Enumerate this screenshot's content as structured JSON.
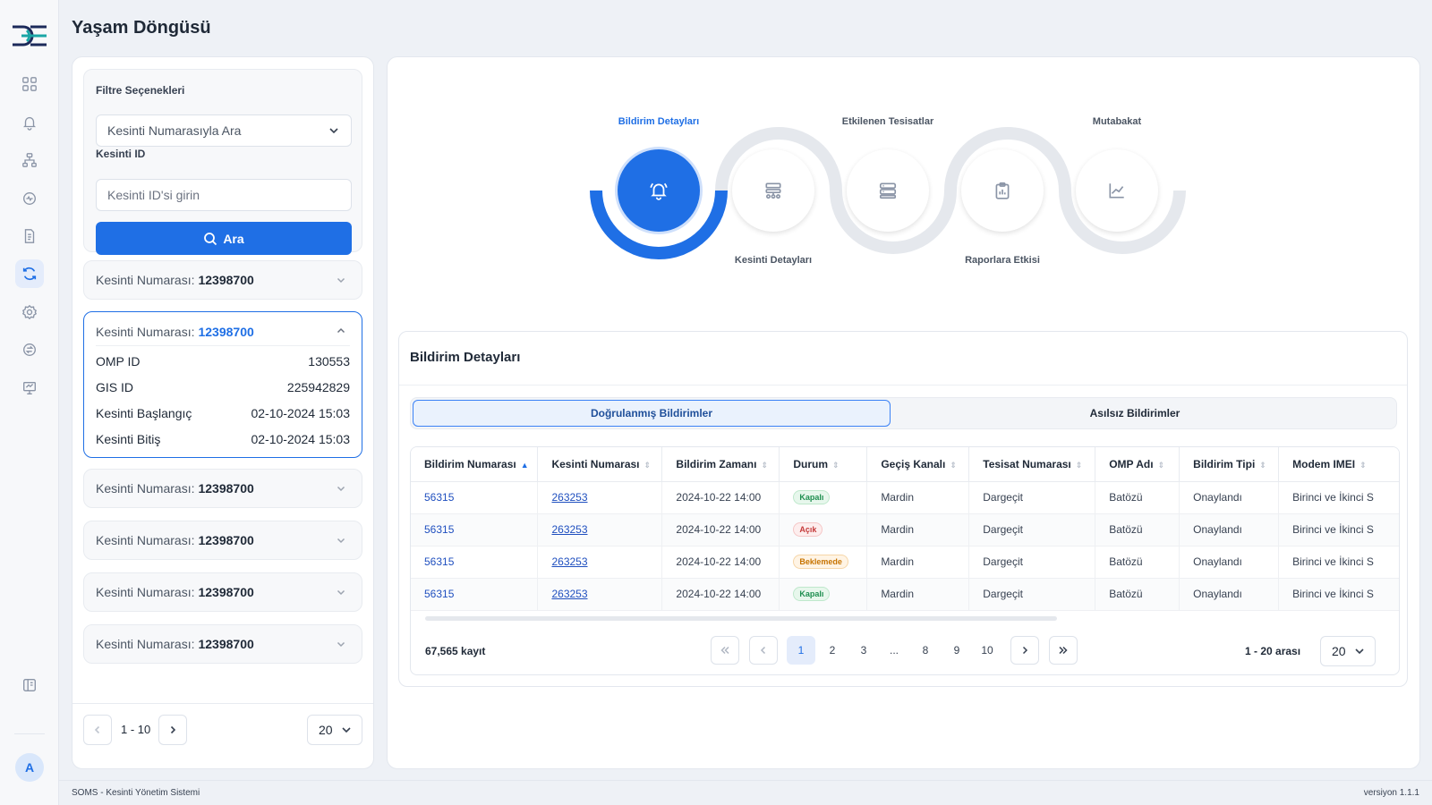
{
  "page": {
    "title": "Yaşam Döngüsü"
  },
  "sidebar": {
    "icons": [
      "dashboard-icon",
      "bell-icon",
      "hierarchy-icon",
      "monitor-icon",
      "document-icon",
      "lifecycle-icon",
      "settings-icon",
      "exchange-icon",
      "presentation-icon"
    ],
    "active": "lifecycle-icon",
    "avatar_initial": "A"
  },
  "filters": {
    "title": "Filtre Seçenekleri",
    "select_value": "Kesinti Numarasıyla Ara",
    "id_label": "Kesinti ID",
    "id_placeholder": "Kesinti ID'si girin",
    "search_label": "Ara"
  },
  "outages": {
    "label": "Kesinti Numarası:",
    "items": [
      {
        "number": "12398700"
      },
      {
        "number": "12398700",
        "expanded": true,
        "details": [
          {
            "key": "OMP ID",
            "value": "130553"
          },
          {
            "key": "GIS ID",
            "value": "225942829"
          },
          {
            "key": "Kesinti Başlangıç",
            "value": "02-10-2024 15:03"
          },
          {
            "key": "Kesinti Bitiş",
            "value": "02-10-2024 15:03"
          }
        ]
      },
      {
        "number": "12398700"
      },
      {
        "number": "12398700"
      },
      {
        "number": "12398700"
      },
      {
        "number": "12398700"
      }
    ],
    "range": "1 - 10",
    "page_size": "20"
  },
  "stepper": {
    "steps": [
      {
        "label": "Bildirim Detayları",
        "icon": "bell-icon",
        "active": true
      },
      {
        "label": "Kesinti Detayları",
        "icon": "network-icon"
      },
      {
        "label": "Etkilenen Tesisatlar",
        "icon": "server-icon"
      },
      {
        "label": "Raporlara Etkisi",
        "icon": "clipboard-icon"
      },
      {
        "label": "Mutabakat",
        "icon": "chart-line-icon"
      }
    ]
  },
  "details": {
    "title": "Bildirim Detayları",
    "tabs": [
      {
        "label": "Doğrulanmış Bildirimler",
        "active": true
      },
      {
        "label": "Asılsız Bildirimler"
      }
    ],
    "columns": [
      "Bildirim Numarası",
      "Kesinti Numarası",
      "Bildirim Zamanı",
      "Durum",
      "Geçiş Kanalı",
      "Tesisat Numarası",
      "OMP Adı",
      "Bildirim Tipi",
      "Modem IMEI"
    ],
    "rows": [
      {
        "bildirim": "56315",
        "kesinti": "263253",
        "zaman": "2024-10-22 14:00",
        "durum": "Kapalı",
        "durum_type": "green",
        "kanal": "Mardin",
        "tesisat": "Dargeçit",
        "omp": "Batözü",
        "tip": "Onaylandı",
        "imei": "Birinci ve İkinci S"
      },
      {
        "bildirim": "56315",
        "kesinti": "263253",
        "zaman": "2024-10-22 14:00",
        "durum": "Açık",
        "durum_type": "red",
        "kanal": "Mardin",
        "tesisat": "Dargeçit",
        "omp": "Batözü",
        "tip": "Onaylandı",
        "imei": "Birinci ve İkinci S"
      },
      {
        "bildirim": "56315",
        "kesinti": "263253",
        "zaman": "2024-10-22 14:00",
        "durum": "Beklemede",
        "durum_type": "orange",
        "kanal": "Mardin",
        "tesisat": "Dargeçit",
        "omp": "Batözü",
        "tip": "Onaylandı",
        "imei": "Birinci ve İkinci S"
      },
      {
        "bildirim": "56315",
        "kesinti": "263253",
        "zaman": "2024-10-22 14:00",
        "durum": "Kapalı",
        "durum_type": "green",
        "kanal": "Mardin",
        "tesisat": "Dargeçit",
        "omp": "Batözü",
        "tip": "Onaylandı",
        "imei": "Birinci ve İkinci S"
      }
    ],
    "total": "67,565 kayıt",
    "pages": [
      "1",
      "2",
      "3",
      "...",
      "8",
      "9",
      "10"
    ],
    "current_page": "1",
    "range": "1 - 20 arası",
    "page_size": "20"
  },
  "footer": {
    "left": "SOMS - Kesinti Yönetim Sistemi",
    "right": "versiyon 1.1.1"
  },
  "colors": {
    "primary": "#1f6fe5",
    "background": "#eef1f6"
  }
}
